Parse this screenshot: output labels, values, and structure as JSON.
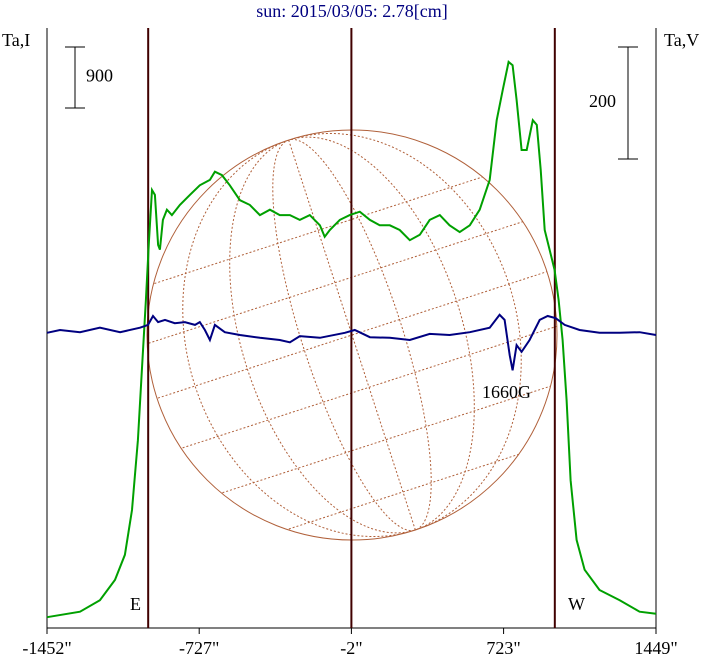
{
  "chart_data": {
    "type": "line",
    "title": "sun: 2015/03/05: 2.78[cm]",
    "y_label": "Ta,I",
    "y2_label": "Ta,V",
    "annotations": [
      "E",
      "W",
      "1660G"
    ],
    "xlim": [
      -1452,
      1449
    ],
    "xticks": [
      {
        "value": -1452,
        "label": "-1452\""
      },
      {
        "value": -727,
        "label": "-727\""
      },
      {
        "value": -2,
        "label": "-2\""
      },
      {
        "value": 723,
        "label": "723\""
      },
      {
        "value": 1449,
        "label": "1449\""
      }
    ],
    "ylim": [
      0,
      8850
    ],
    "y2lim": [
      -523,
      548
    ],
    "scale_bars": [
      {
        "axis": "y",
        "value": 900
      },
      {
        "axis": "y2",
        "value": 200
      }
    ],
    "vlines": [
      -970,
      -2,
      967
    ],
    "series": [
      {
        "color": "#00a000",
        "x": [
          -1452,
          -1295,
          -1200,
          -1128,
          -1081,
          -1047,
          -1019,
          -1000,
          -981,
          -966,
          -952,
          -938,
          -923,
          -914,
          -900,
          -881,
          -857,
          -819,
          -771,
          -724,
          -676,
          -652,
          -619,
          -581,
          -533,
          -486,
          -438,
          -390,
          -343,
          -295,
          -248,
          -200,
          -152,
          -129,
          -105,
          -57,
          -10,
          38,
          86,
          133,
          181,
          228,
          276,
          324,
          371,
          419,
          466,
          514,
          562,
          609,
          657,
          690,
          719,
          747,
          766,
          785,
          809,
          833,
          862,
          881,
          900,
          919,
          942,
          966,
          985,
          1004,
          1023,
          1042,
          1071,
          1109,
          1180,
          1276,
          1371,
          1449
        ],
        "values": [
          160,
          240,
          410,
          710,
          1080,
          1740,
          2770,
          3810,
          4840,
          5720,
          6460,
          6390,
          5650,
          5580,
          6020,
          6170,
          6090,
          6240,
          6390,
          6530,
          6610,
          6730,
          6680,
          6530,
          6310,
          6240,
          6090,
          6170,
          6090,
          6090,
          6020,
          6090,
          5940,
          5770,
          5870,
          6020,
          6090,
          6140,
          6020,
          5940,
          5940,
          5870,
          5720,
          5800,
          6020,
          6090,
          5940,
          5840,
          5940,
          6170,
          6610,
          7490,
          7940,
          8350,
          8300,
          7790,
          7050,
          7050,
          7490,
          7420,
          6760,
          5870,
          5580,
          5280,
          4840,
          4250,
          3360,
          2180,
          1300,
          860,
          560,
          410,
          240,
          210
        ]
      },
      {
        "color": "#000080",
        "axis": "y2",
        "x": [
          -1452,
          -1390,
          -1295,
          -1200,
          -1104,
          -1009,
          -971,
          -947,
          -923,
          -890,
          -843,
          -795,
          -747,
          -724,
          -700,
          -676,
          -652,
          -605,
          -533,
          -438,
          -343,
          -295,
          -248,
          -152,
          -33,
          14,
          86,
          181,
          276,
          371,
          466,
          562,
          657,
          704,
          728,
          752,
          766,
          785,
          809,
          847,
          895,
          933,
          971,
          1014,
          1085,
          1180,
          1276,
          1371,
          1449
        ],
        "values": [
          4,
          9,
          5,
          13,
          5,
          13,
          18,
          34,
          23,
          27,
          21,
          23,
          18,
          23,
          9,
          -9,
          18,
          5,
          0,
          -5,
          -9,
          -13,
          -2,
          -5,
          4,
          9,
          -4,
          -5,
          -9,
          2,
          0,
          5,
          13,
          36,
          27,
          -36,
          -63,
          -18,
          -30,
          -9,
          27,
          34,
          30,
          18,
          9,
          4,
          4,
          5,
          0
        ]
      }
    ]
  }
}
